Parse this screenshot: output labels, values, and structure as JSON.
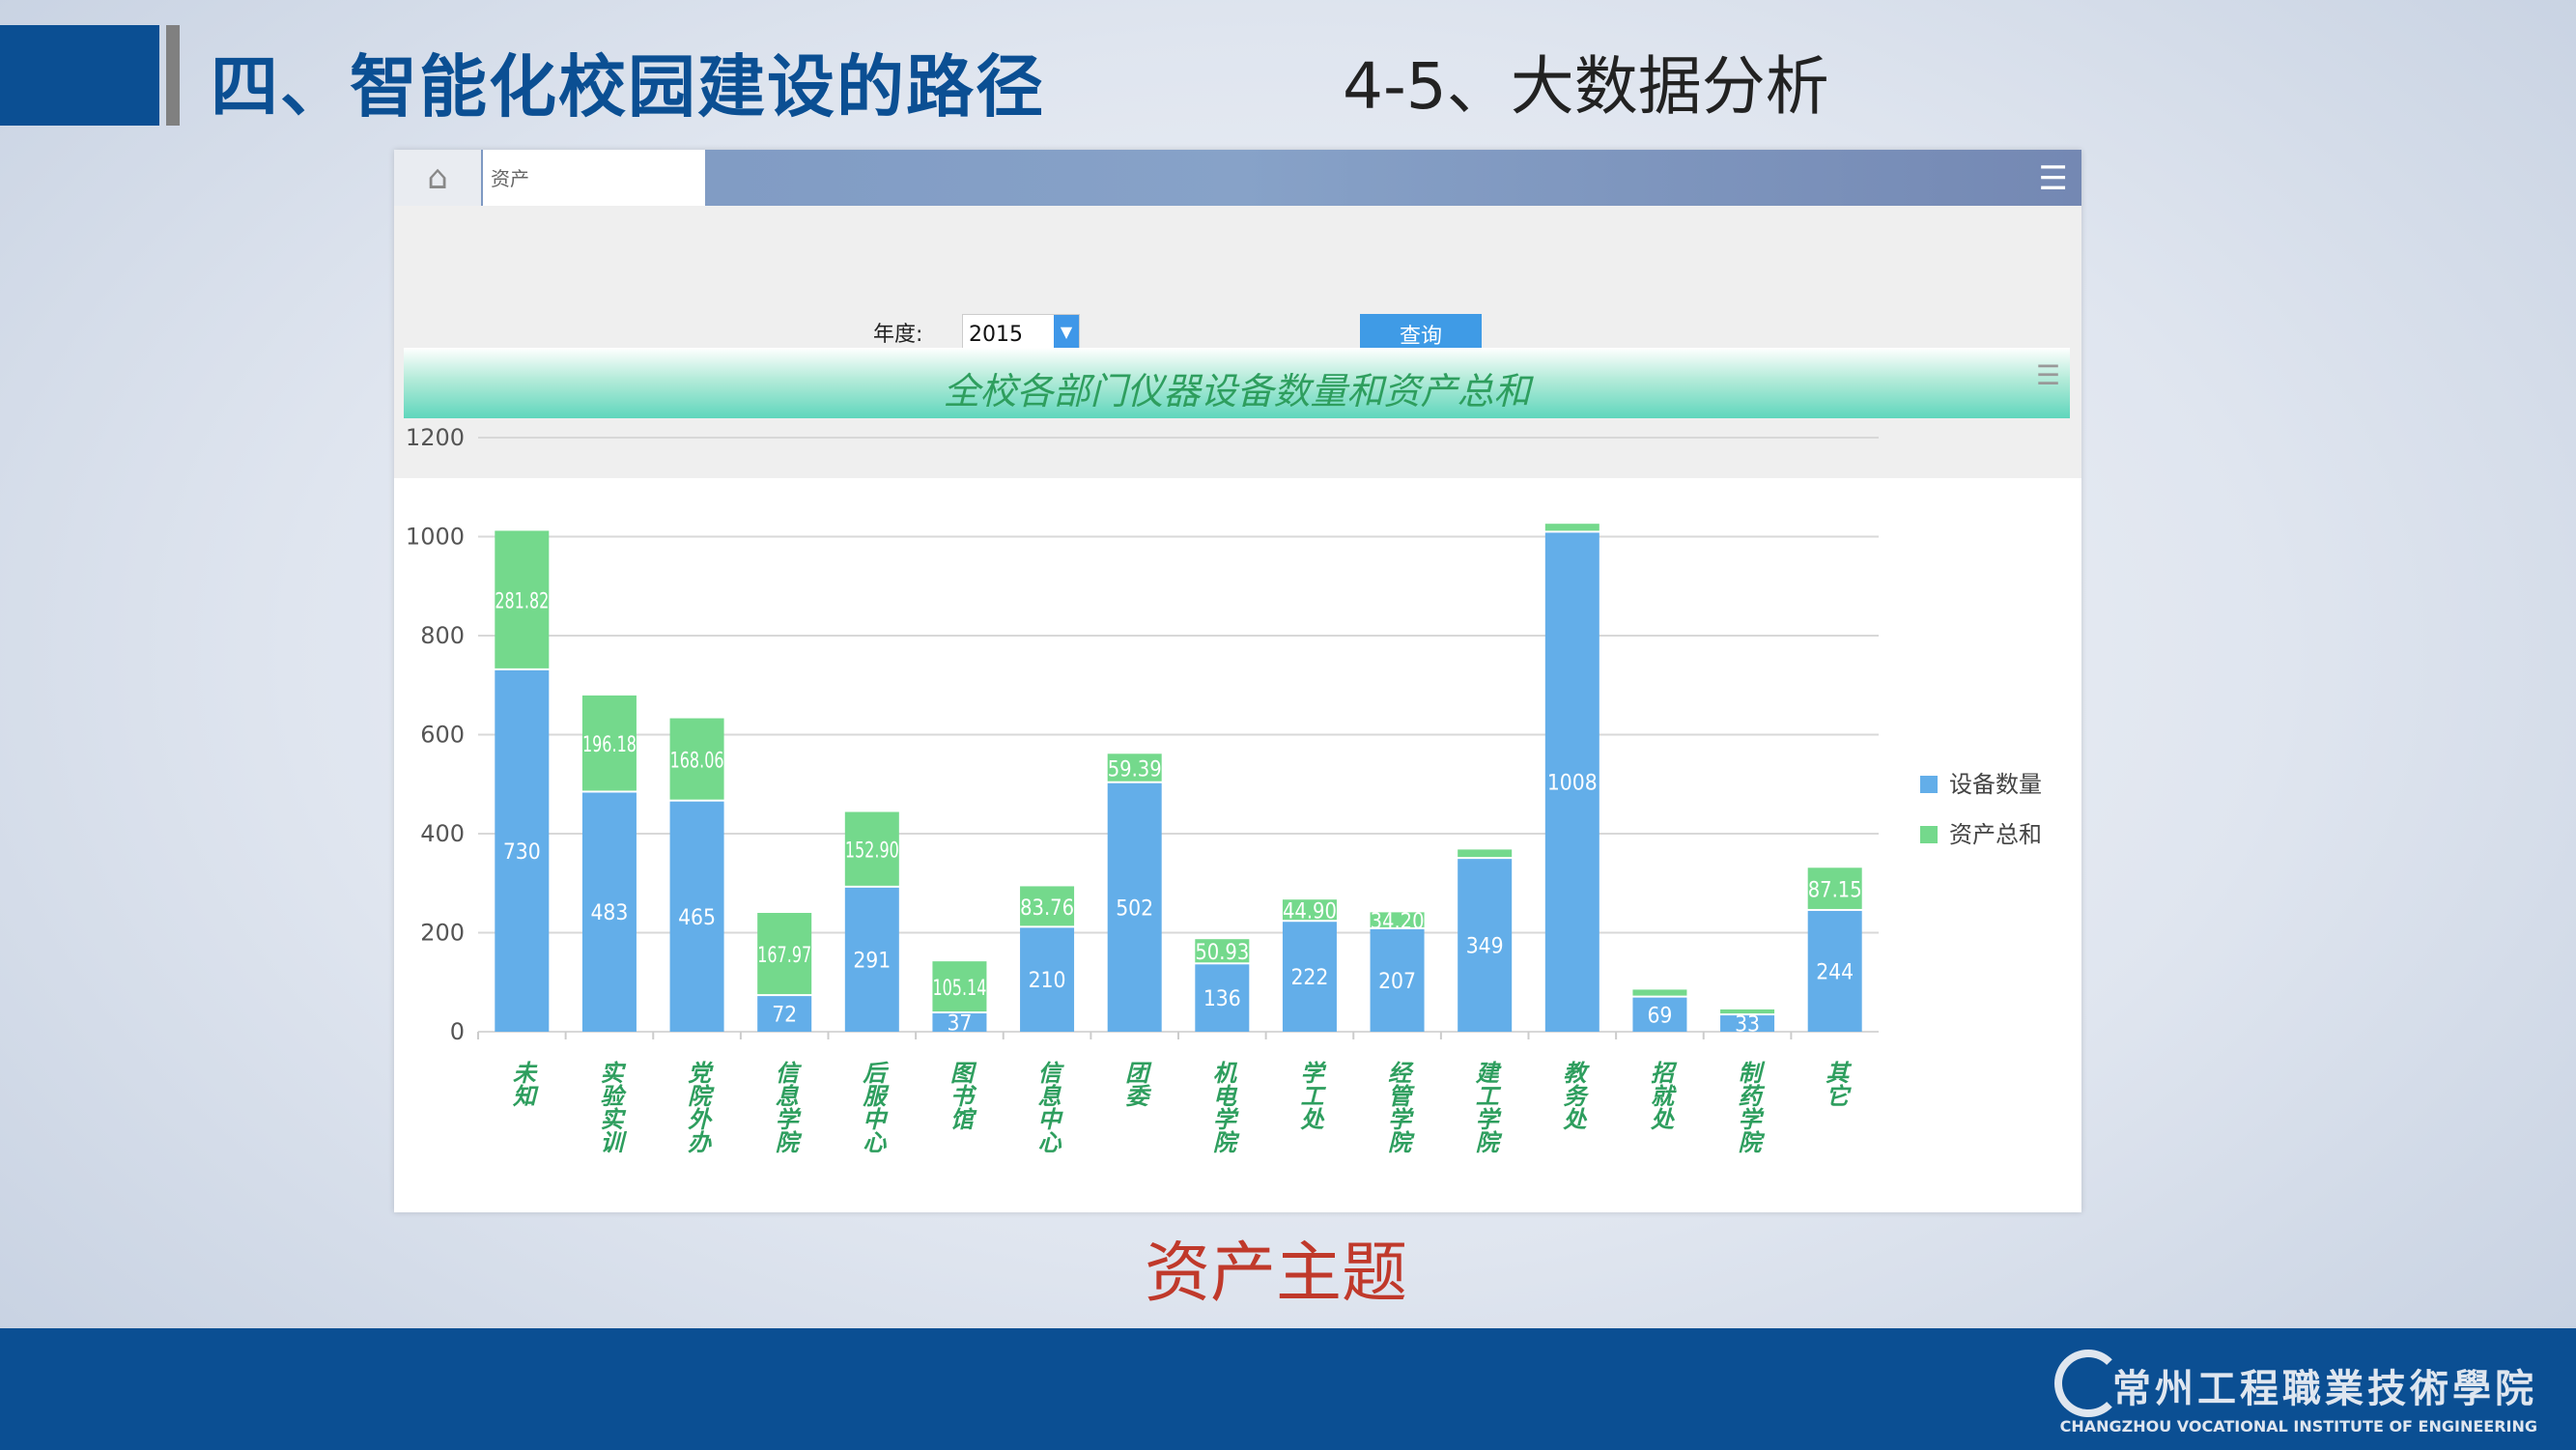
{
  "header": {
    "title": "四、智能化校园建设的路径",
    "subtitle": "4-5、大数据分析"
  },
  "app": {
    "home_icon": "home-icon",
    "tab_label": "资产",
    "menu_icon": "hamburger-icon",
    "filter": {
      "year_label": "年度:",
      "year_value": "2015",
      "query_label": "查询"
    }
  },
  "chart_data": {
    "type": "bar",
    "stacked": true,
    "title": "全校各部门仪器设备数量和资产总和",
    "categories": [
      "未知",
      "实验实训",
      "党院外办",
      "信息学院",
      "后服中心",
      "图书馆",
      "信息中心",
      "团委",
      "机电学院",
      "学工处",
      "经管学院",
      "建工学院",
      "教务处",
      "招就处",
      "制药学院",
      "其它"
    ],
    "series": [
      {
        "name": "设备数量",
        "color": "#63aee9",
        "values": [
          730,
          483,
          465,
          72,
          291,
          37,
          210,
          502,
          136,
          222,
          207,
          349,
          1008,
          69,
          33,
          244
        ],
        "labels": [
          "730",
          "483",
          "465",
          "72",
          "291",
          "37",
          "210",
          "502",
          "136",
          "222",
          "207",
          "349",
          "1008",
          "69",
          "33",
          "244"
        ]
      },
      {
        "name": "资产总和",
        "color": "#74d98c",
        "values": [
          281.82,
          196.18,
          168.06,
          167.97,
          152.9,
          105.14,
          83.76,
          59.39,
          50.93,
          44.9,
          34.2,
          19,
          18,
          16,
          12,
          87.15
        ],
        "labels": [
          "281.82",
          "196.18",
          "168.06",
          "167.97",
          "152.90",
          "105.14",
          "83.76",
          "59.39",
          "50.93",
          "44.90",
          "34.20",
          "",
          "",
          "",
          "",
          "87.15"
        ]
      }
    ],
    "ylim": [
      0,
      1200
    ],
    "yticks": [
      "0",
      "200",
      "400",
      "600",
      "800",
      "1000",
      "1200"
    ],
    "grid": true,
    "legend": "right"
  },
  "theme_label": "资产主题",
  "footer": {
    "logo_cn": "常州工程職業技術學院",
    "logo_en": "CHANGZHOU VOCATIONAL INSTITUTE OF ENGINEERING"
  }
}
